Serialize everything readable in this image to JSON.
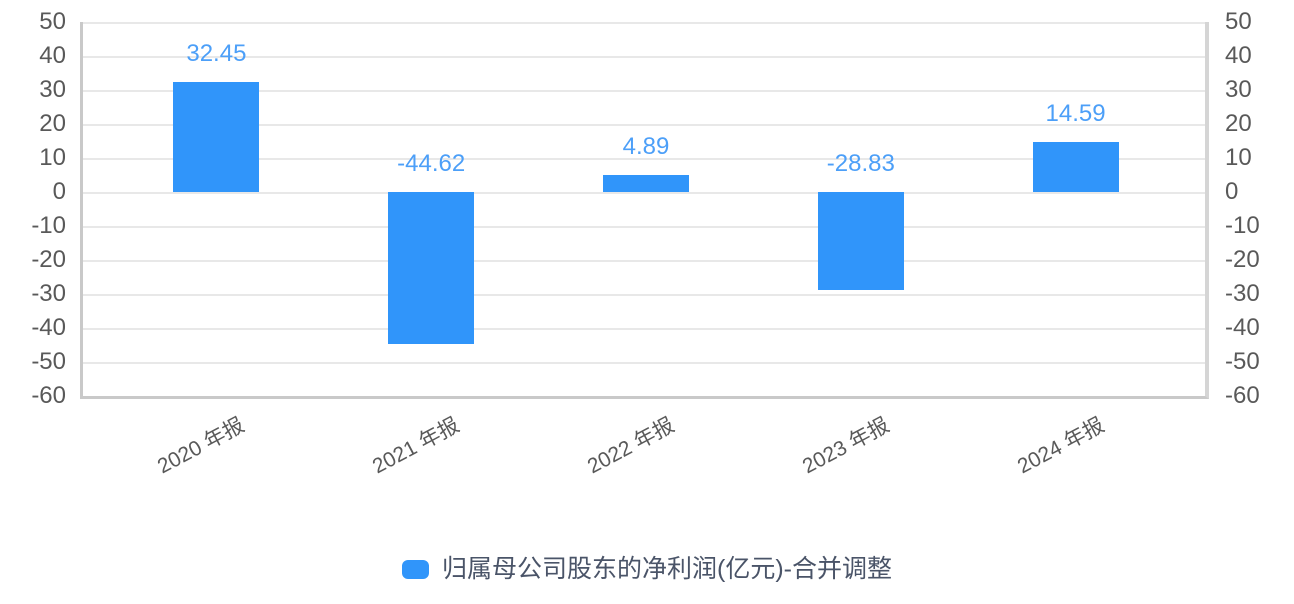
{
  "chart_data": {
    "type": "bar",
    "categories": [
      "2020 年报",
      "2021 年报",
      "2022 年报",
      "2023 年报",
      "2024 年报"
    ],
    "values": [
      32.45,
      -44.62,
      4.89,
      -28.83,
      14.59
    ],
    "value_labels": [
      "32.45",
      "-44.62",
      "4.89",
      "-28.83",
      "14.59"
    ],
    "series": [
      {
        "name": "归属母公司股东的净利润(亿元)-合并调整",
        "values": [
          32.45,
          -44.62,
          4.89,
          -28.83,
          14.59
        ]
      }
    ],
    "title": "",
    "xlabel": "",
    "ylabel": "",
    "ylim": [
      -60,
      50
    ],
    "y_tick_step": 10,
    "y_ticks": [
      50,
      40,
      30,
      20,
      10,
      0,
      -10,
      -20,
      -30,
      -40,
      -50,
      -60
    ],
    "y_axis_sides": [
      "left",
      "right"
    ],
    "grid": true,
    "legend_position": "bottom",
    "legend": [
      {
        "label": "归属母公司股东的净利润(亿元)-合并调整",
        "color": "#3095FA"
      }
    ],
    "colors": {
      "bar": "#3095FA",
      "value_label": "#4C9FF8",
      "axis_text": "#595959",
      "legend_text": "#4A5468",
      "gridline": "#E8E8E8",
      "axis_line": "#C9C9C9"
    }
  }
}
